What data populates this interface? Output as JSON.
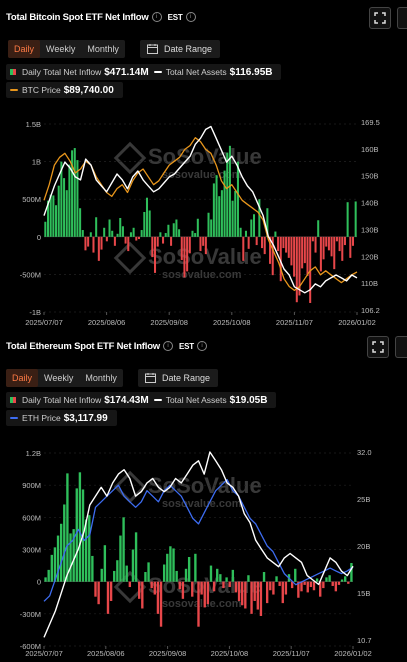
{
  "charts": [
    {
      "title": "Total Bitcoin Spot ETF Net Inflow",
      "timezone": "EST",
      "tabs": [
        "Daily",
        "Weekly",
        "Monthly"
      ],
      "date_range_label": "Date Range",
      "legend": {
        "inflow_label": "Daily Total Net Inflow",
        "inflow_value": "$471.14M",
        "assets_label": "Total Net Assets",
        "assets_value": "$116.95B",
        "price_label": "BTC Price",
        "price_value": "$89,740.00"
      },
      "watermark": {
        "brand": "SoSoValue",
        "url": "sosovalue.com"
      }
    },
    {
      "title": "Total Ethereum Spot ETF Net Inflow",
      "timezone": "EST",
      "tabs": [
        "Daily",
        "Weekly",
        "Monthly"
      ],
      "date_range_label": "Date Range",
      "legend": {
        "inflow_label": "Daily Total Net Inflow",
        "inflow_value": "$174.43M",
        "assets_label": "Total Net Assets",
        "assets_value": "$19.05B",
        "price_label": "ETH Price",
        "price_value": "$3,117.99"
      },
      "watermark": {
        "brand": "SoSoValue",
        "url": "sosovalue.com"
      }
    }
  ],
  "colors": {
    "positive": "#2fbf5b",
    "negative": "#e8474a",
    "assets": "#ffffff",
    "btc_price": "#e8961c",
    "eth_price": "#3d6cf0",
    "accent": "#ff7a45"
  },
  "chart_data": [
    {
      "type": "bar",
      "title": "Total Bitcoin Spot ETF Net Inflow",
      "x_ticks": [
        "2025/07/07",
        "2025/08/06",
        "2025/09/08",
        "2025/10/08",
        "2025/11/07",
        "2026/01/02"
      ],
      "y_left_ticks": [
        "1.5B",
        "1B",
        "500M",
        "0",
        "-500M",
        "-1B"
      ],
      "y_left_range": [
        -1000,
        1500
      ],
      "y_right_ticks": [
        "169.5",
        "160B",
        "150B",
        "140B",
        "130B",
        "120B",
        "110B",
        "106.2"
      ],
      "series": [
        {
          "name": "Daily Total Net Inflow",
          "unit": "M USD",
          "values": [
            200,
            480,
            560,
            550,
            420,
            680,
            1000,
            780,
            620,
            960,
            1150,
            1180,
            1020,
            380,
            90,
            -180,
            -130,
            60,
            -210,
            260,
            -320,
            -170,
            120,
            -60,
            230,
            80,
            -120,
            40,
            250,
            140,
            -90,
            -190,
            60,
            120,
            -50,
            -30,
            90,
            330,
            520,
            350,
            -270,
            -480,
            -130,
            60,
            -90,
            50,
            160,
            -120,
            180,
            230,
            100,
            -310,
            -540,
            -460,
            -220,
            80,
            50,
            240,
            -190,
            -120,
            -230,
            320,
            230,
            710,
            820,
            540,
            620,
            880,
            1120,
            1210,
            480,
            610,
            1000,
            120,
            -320,
            80,
            -160,
            230,
            300,
            -110,
            500,
            -150,
            -230,
            380,
            -360,
            -510,
            70,
            -190,
            -590,
            -150,
            -210,
            -280,
            -380,
            -530,
            -870,
            -780,
            -420,
            -350,
            -520,
            -880,
            -60,
            -210,
            220,
            -460,
            -300,
            -130,
            -180,
            -260,
            -430,
            -60,
            -190,
            -320,
            -110,
            460,
            -280,
            -120,
            470
          ]
        },
        {
          "name": "Total Net Assets",
          "unit": "B USD",
          "values": [
            138,
            143,
            148,
            152,
            156,
            154,
            151,
            150,
            157,
            155,
            150,
            148,
            146,
            149,
            152,
            150,
            147,
            151,
            153,
            150,
            148,
            146,
            147,
            149,
            151,
            152,
            154,
            156,
            158,
            162,
            164,
            167,
            168,
            164,
            160,
            156,
            158,
            155,
            151,
            148,
            146,
            142,
            138,
            131,
            128,
            124,
            120,
            118,
            114,
            113,
            112,
            113,
            115,
            114,
            116,
            117,
            118,
            117,
            116,
            118,
            117
          ]
        },
        {
          "name": "BTC Price",
          "unit": "K USD",
          "values": [
            108,
            112,
            117,
            119,
            120,
            118,
            115,
            116,
            118,
            117,
            114,
            112,
            110,
            109,
            111,
            112,
            110,
            113,
            115,
            116,
            114,
            112,
            113,
            115,
            117,
            118,
            119,
            121,
            122,
            124,
            123,
            121,
            120,
            117,
            113,
            111,
            112,
            110,
            108,
            107,
            106,
            105,
            103,
            98,
            95,
            92,
            88,
            86,
            85,
            86,
            88,
            90,
            91,
            89,
            90,
            89,
            88,
            87,
            88,
            89,
            89.7
          ]
        }
      ]
    },
    {
      "type": "bar",
      "title": "Total Ethereum Spot ETF Net Inflow",
      "x_ticks": [
        "2025/07/07",
        "2025/08/06",
        "2025/09/08",
        "2025/10/08",
        "2025/11/07",
        "2026/01/02"
      ],
      "y_left_ticks": [
        "1.2B",
        "900M",
        "600M",
        "300M",
        "0",
        "-300M",
        "-600M"
      ],
      "y_left_range": [
        -600,
        1200
      ],
      "y_right_ticks": [
        "32.0",
        "25B",
        "20B",
        "15B",
        "10.7"
      ],
      "series": [
        {
          "name": "Daily Total Net Inflow",
          "unit": "M USD",
          "values": [
            40,
            110,
            250,
            320,
            430,
            540,
            720,
            1010,
            450,
            490,
            870,
            1020,
            860,
            580,
            620,
            240,
            -140,
            -210,
            120,
            340,
            -300,
            -180,
            100,
            200,
            430,
            600,
            150,
            -50,
            300,
            460,
            -160,
            -250,
            90,
            180,
            -60,
            -120,
            -300,
            -420,
            160,
            260,
            330,
            310,
            100,
            -70,
            -160,
            120,
            230,
            -140,
            260,
            -420,
            -120,
            -240,
            -210,
            150,
            -90,
            120,
            70,
            -60,
            40,
            -50,
            110,
            -100,
            -180,
            -220,
            -250,
            60,
            -300,
            -180,
            -260,
            -320,
            90,
            -200,
            -80,
            -120,
            50,
            -40,
            -200,
            -120,
            70,
            -60,
            120,
            -150,
            -90,
            -30,
            -100,
            -50,
            -80,
            30,
            -140,
            -60,
            40,
            60,
            -40,
            -90,
            -30,
            20,
            50,
            -20,
            174
          ]
        },
        {
          "name": "Total Net Assets",
          "unit": "B USD",
          "values": [
            11,
            12.5,
            14,
            16,
            18,
            19.5,
            21,
            23,
            26,
            27,
            28,
            27,
            28.5,
            29.5,
            30,
            29,
            27,
            27.5,
            28.5,
            29,
            28,
            27.5,
            28,
            29,
            28.5,
            29.5,
            30.5,
            31,
            29.5,
            32,
            31,
            30,
            28.5,
            28,
            27,
            25,
            24,
            22,
            21,
            20,
            19.5,
            19,
            20,
            20.5,
            20,
            19.5,
            18,
            17.5,
            17,
            18.5,
            20,
            19.5,
            18.5,
            18,
            19.05
          ]
        },
        {
          "name": "ETH Price",
          "unit": "USD",
          "values": [
            2500,
            2600,
            2900,
            3200,
            3500,
            3600,
            3800,
            3600,
            3700,
            4200,
            4300,
            4400,
            4500,
            4600,
            4400,
            4300,
            4200,
            4300,
            4500,
            4400,
            4300,
            4500,
            4600,
            4500,
            4400,
            4200,
            4000,
            3900,
            4100,
            4300,
            4500,
            4600,
            4700,
            4500,
            4400,
            4200,
            4000,
            3900,
            3700,
            3500,
            3400,
            3200,
            3000,
            2900,
            2800,
            2850,
            2900,
            2950,
            3000,
            3050,
            3100,
            3050,
            3000,
            3050,
            3117.99
          ]
        }
      ]
    }
  ]
}
